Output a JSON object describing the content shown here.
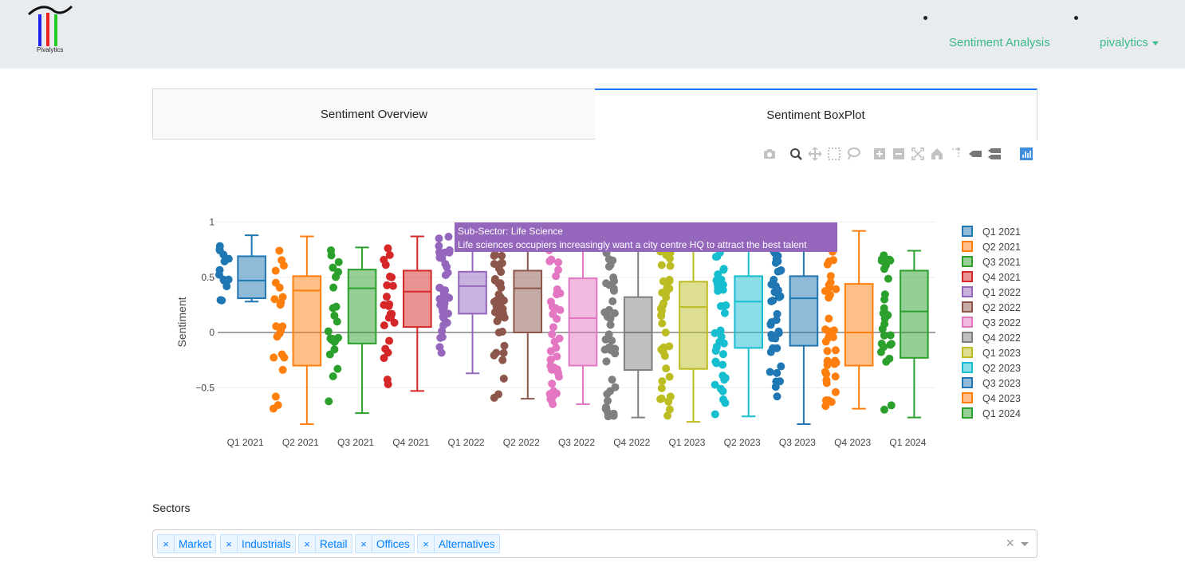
{
  "app": {
    "logo_text": "Pivalytics"
  },
  "nav": {
    "links": [
      "Sentiment Analysis",
      "pivalytics"
    ]
  },
  "tabs": [
    {
      "label": "Sentiment Overview",
      "active": false
    },
    {
      "label": "Sentiment BoxPlot",
      "active": true
    }
  ],
  "modebar": [
    "camera-icon",
    "zoom-icon",
    "pan-icon",
    "box-select-icon",
    "lasso-icon",
    "zoom-in-icon",
    "zoom-out-icon",
    "autoscale-icon",
    "reset-axes-icon",
    "spike-lines-icon",
    "show-closest-icon",
    "compare-data-icon",
    "plotly-logo-icon"
  ],
  "tooltip": {
    "title": "Sub-Sector: Life Science",
    "text": "Life sciences occupiers increasingly want a city centre HQ to attract the best talent",
    "color": "#9467bd"
  },
  "chart_data": {
    "type": "box",
    "ylabel": "Sentiment",
    "ylim": [
      -0.85,
      1.0
    ],
    "yticks": [
      -0.5,
      0,
      0.5,
      1
    ],
    "ytick_labels": [
      "−0.5",
      "0",
      "0.5",
      "1"
    ],
    "categories": [
      "Q1 2021",
      "Q2 2021",
      "Q3 2021",
      "Q4 2021",
      "Q1 2022",
      "Q2 2022",
      "Q3 2022",
      "Q4 2022",
      "Q1 2023",
      "Q2 2023",
      "Q3 2023",
      "Q4 2023",
      "Q1 2024"
    ],
    "legend_position": "right",
    "series": [
      {
        "name": "Q1 2021",
        "color": "#1f77b4",
        "min": 0.28,
        "q1": 0.31,
        "median": 0.47,
        "q3": 0.69,
        "max": 0.88
      },
      {
        "name": "Q2 2021",
        "color": "#ff7f0e",
        "min": -0.83,
        "q1": -0.3,
        "median": 0.38,
        "q3": 0.51,
        "max": 0.87
      },
      {
        "name": "Q3 2021",
        "color": "#2ca02c",
        "min": -0.73,
        "q1": -0.1,
        "median": 0.4,
        "q3": 0.57,
        "max": 0.77
      },
      {
        "name": "Q4 2021",
        "color": "#d62728",
        "min": -0.53,
        "q1": 0.05,
        "median": 0.37,
        "q3": 0.56,
        "max": 0.87
      },
      {
        "name": "Q1 2022",
        "color": "#9467bd",
        "min": -0.37,
        "q1": 0.17,
        "median": 0.42,
        "q3": 0.55,
        "max": 0.88
      },
      {
        "name": "Q2 2022",
        "color": "#8c564b",
        "min": -0.6,
        "q1": 0.0,
        "median": 0.4,
        "q3": 0.56,
        "max": 0.75
      },
      {
        "name": "Q3 2022",
        "color": "#e377c2",
        "min": -0.65,
        "q1": -0.3,
        "median": 0.13,
        "q3": 0.49,
        "max": 0.75
      },
      {
        "name": "Q4 2022",
        "color": "#7f7f7f",
        "min": -0.77,
        "q1": -0.34,
        "median": 0.0,
        "q3": 0.32,
        "max": 0.75
      },
      {
        "name": "Q1 2023",
        "color": "#bcbd22",
        "min": -0.81,
        "q1": -0.33,
        "median": 0.23,
        "q3": 0.46,
        "max": 0.75
      },
      {
        "name": "Q2 2023",
        "color": "#17becf",
        "min": -0.76,
        "q1": -0.14,
        "median": 0.28,
        "q3": 0.51,
        "max": 0.75
      },
      {
        "name": "Q3 2023",
        "color": "#1f77b4",
        "min": -0.83,
        "q1": -0.12,
        "median": 0.31,
        "q3": 0.51,
        "max": 0.75
      },
      {
        "name": "Q4 2023",
        "color": "#ff7f0e",
        "min": -0.69,
        "q1": -0.3,
        "median": 0.0,
        "q3": 0.44,
        "max": 0.92
      },
      {
        "name": "Q1 2024",
        "color": "#2ca02c",
        "min": -0.77,
        "q1": -0.23,
        "median": 0.19,
        "q3": 0.56,
        "max": 0.74
      }
    ]
  },
  "sectors": {
    "label": "Sectors",
    "chips": [
      "Market",
      "Industrials",
      "Retail",
      "Offices",
      "Alternatives"
    ],
    "clear_label": "×"
  }
}
